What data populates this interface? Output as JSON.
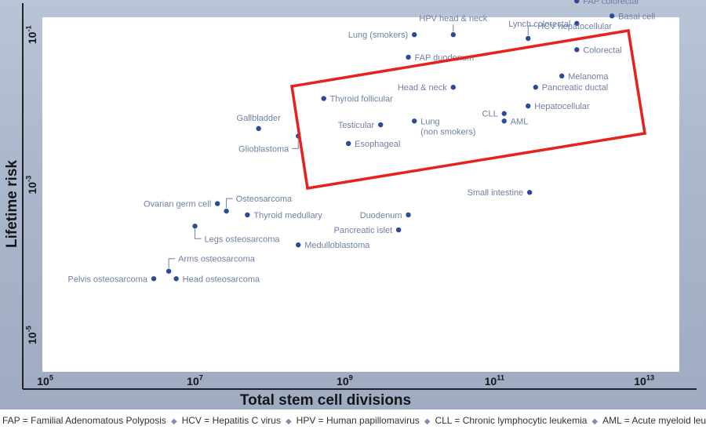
{
  "chart_data": {
    "type": "scatter",
    "xlabel": "Total stem cell divisions",
    "ylabel": "Lifetime risk",
    "xscale": "log10",
    "yscale": "log10",
    "xlim_exp": [
      4.7,
      13.7
    ],
    "ylim_exp": [
      -5.72,
      -0.58
    ],
    "x_tick_exponents": [
      5,
      7,
      9,
      11,
      13
    ],
    "x_tick_labels": [
      {
        "base": "10",
        "exp": "5"
      },
      {
        "base": "10",
        "exp": "7"
      },
      {
        "base": "10",
        "exp": "9"
      },
      {
        "base": "10",
        "exp": "11"
      },
      {
        "base": "10",
        "exp": "13"
      }
    ],
    "y_tick_exponents": [
      -1,
      -3,
      -5
    ],
    "y_tick_labels": [
      {
        "base": "10",
        "exp": "-1"
      },
      {
        "base": "10",
        "exp": "-3"
      },
      {
        "base": "10",
        "exp": "-5"
      }
    ],
    "grid": false,
    "series": [
      {
        "name": "cancer types",
        "points": [
          {
            "label": "FAP colorectal",
            "log_x": 12.1,
            "log_y": -0.55,
            "anchor": "right"
          },
          {
            "label": "Lynch colorectal",
            "log_x": 12.1,
            "log_y": -0.85,
            "anchor": "left"
          },
          {
            "label": "Basal cell",
            "log_x": 12.57,
            "log_y": -0.75,
            "anchor": "right"
          },
          {
            "label": "HPV head & neck",
            "log_x": 10.45,
            "log_y": -1.0,
            "anchor": "above-left"
          },
          {
            "label": "Lung (smokers)",
            "log_x": 9.93,
            "log_y": -1.0,
            "anchor": "left"
          },
          {
            "label": "HCV hepatocellular",
            "log_x": 11.45,
            "log_y": -1.05,
            "anchor": "above-right"
          },
          {
            "label": "Colorectal",
            "log_x": 12.1,
            "log_y": -1.2,
            "anchor": "right"
          },
          {
            "label": "FAP duodenum",
            "log_x": 9.85,
            "log_y": -1.3,
            "anchor": "right"
          },
          {
            "label": "Melanoma",
            "log_x": 11.9,
            "log_y": -1.55,
            "anchor": "right"
          },
          {
            "label": "Head & neck",
            "log_x": 10.45,
            "log_y": -1.7,
            "anchor": "left"
          },
          {
            "label": "Pancreatic ductal",
            "log_x": 11.55,
            "log_y": -1.7,
            "anchor": "right"
          },
          {
            "label": "Thyroid follicular",
            "log_x": 8.72,
            "log_y": -1.85,
            "anchor": "right"
          },
          {
            "label": "Hepatocellular",
            "log_x": 11.45,
            "log_y": -1.95,
            "anchor": "right"
          },
          {
            "label": "CLL",
            "log_x": 11.13,
            "log_y": -2.05,
            "anchor": "left"
          },
          {
            "label": "AML",
            "log_x": 11.13,
            "log_y": -2.15,
            "anchor": "right"
          },
          {
            "label": "Testicular",
            "log_x": 9.48,
            "log_y": -2.2,
            "anchor": "left"
          },
          {
            "label": "Lung\n(non smokers)",
            "log_x": 9.93,
            "log_y": -2.15,
            "anchor": "right"
          },
          {
            "label": "Gallbladder",
            "log_x": 7.85,
            "log_y": -2.25,
            "anchor": "above"
          },
          {
            "label": "Glioblastoma",
            "log_x": 8.38,
            "log_y": -2.35,
            "anchor": "below-left"
          },
          {
            "label": "Esophageal",
            "log_x": 9.05,
            "log_y": -2.45,
            "anchor": "right"
          },
          {
            "label": "Small intestine",
            "log_x": 11.47,
            "log_y": -3.1,
            "anchor": "left"
          },
          {
            "label": "Osteosarcoma",
            "log_x": 7.42,
            "log_y": -3.35,
            "anchor": "above-right"
          },
          {
            "label": "Ovarian germ cell",
            "log_x": 7.3,
            "log_y": -3.25,
            "anchor": "left"
          },
          {
            "label": "Thyroid medullary",
            "log_x": 7.7,
            "log_y": -3.4,
            "anchor": "right"
          },
          {
            "label": "Duodenum",
            "log_x": 9.85,
            "log_y": -3.4,
            "anchor": "left"
          },
          {
            "label": "Pancreatic islet",
            "log_x": 9.72,
            "log_y": -3.6,
            "anchor": "left"
          },
          {
            "label": "Legs osteosarcoma",
            "log_x": 7.0,
            "log_y": -3.55,
            "anchor": "below-right"
          },
          {
            "label": "Medulloblastoma",
            "log_x": 8.38,
            "log_y": -3.8,
            "anchor": "right"
          },
          {
            "label": "Arms osteosarcoma",
            "log_x": 6.65,
            "log_y": -4.15,
            "anchor": "above-right"
          },
          {
            "label": "Pelvis osteosarcoma",
            "log_x": 6.45,
            "log_y": -4.25,
            "anchor": "left"
          },
          {
            "label": "Head osteosarcoma",
            "log_x": 6.75,
            "log_y": -4.25,
            "anchor": "right"
          }
        ]
      }
    ],
    "annotations": [
      {
        "type": "highlight-rectangle",
        "color": "#e8211d"
      }
    ]
  },
  "footer": {
    "items": [
      "FAP = Familial Adenomatous Polyposis",
      "HCV = Hepatitis C virus",
      "HPV = Human papillomavirus",
      "CLL = Chronic lymphocytic leukemia",
      "AML = Acute myeloid leukemia"
    ]
  },
  "colors": {
    "point": "#2b4a9a",
    "label": "#6f7fa6",
    "axis_text": "#161616",
    "highlight": "#e8211d",
    "separator": "#7f8fb5"
  }
}
